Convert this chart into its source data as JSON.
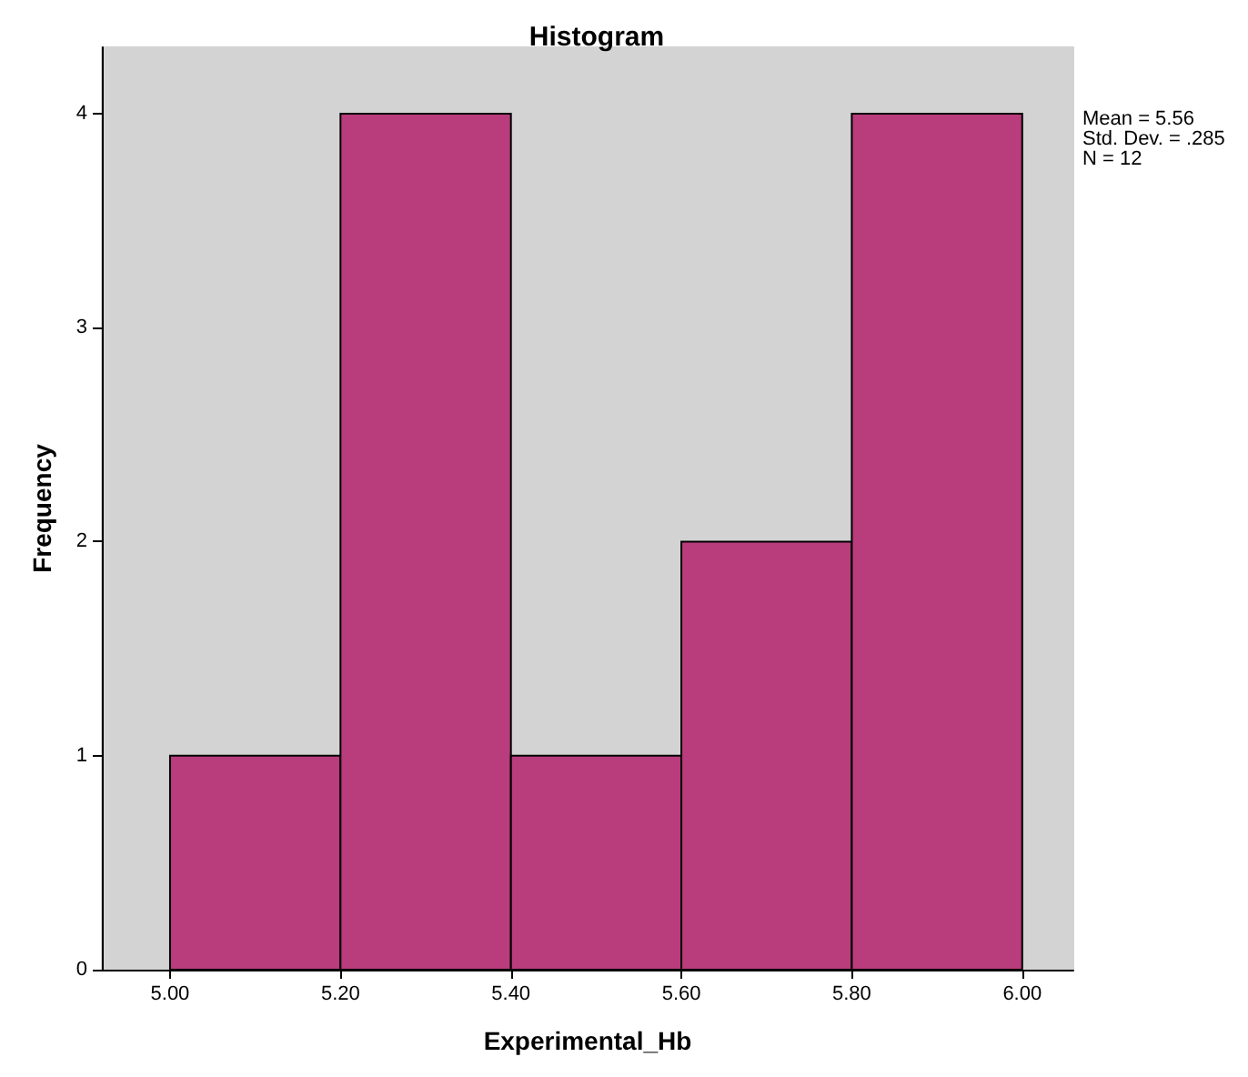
{
  "chart_data": {
    "type": "histogram",
    "title": "Histogram",
    "xlabel": "Experimental_Hb",
    "ylabel": "Frequency",
    "bins": [
      5.0,
      5.2,
      5.4,
      5.6,
      5.8,
      6.0
    ],
    "values": [
      1,
      4,
      1,
      2,
      4
    ],
    "color": "#b93c7c",
    "xlim": [
      4.92,
      6.06
    ],
    "xticks": [
      {
        "value": 5.0,
        "label": "5.00"
      },
      {
        "value": 5.2,
        "label": "5.20"
      },
      {
        "value": 5.4,
        "label": "5.40"
      },
      {
        "value": 5.6,
        "label": "5.60"
      },
      {
        "value": 5.8,
        "label": "5.80"
      },
      {
        "value": 6.0,
        "label": "6.00"
      }
    ],
    "ylim": [
      0,
      4.31
    ],
    "yticks": [
      0,
      1,
      2,
      3,
      4
    ],
    "grid": false,
    "annotations": [
      "Mean = 5.56",
      "Std. Dev. = .285",
      "N = 12"
    ]
  }
}
